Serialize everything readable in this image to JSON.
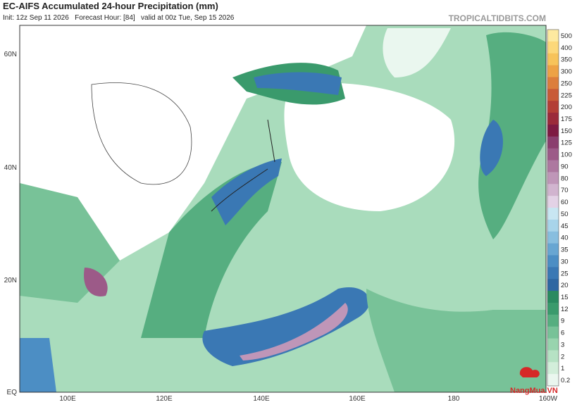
{
  "header": {
    "title": "EC-AIFS Accumulated 24-hour Precipitation (mm)",
    "subtitle": "Init: 12z Sep 11 2026   Forecast Hour: [84]   valid at 00z Tue, Sep 15 2026",
    "site": "TROPICALTIDBITS.COM"
  },
  "map": {
    "lat_labels": [
      "60N",
      "40N",
      "20N",
      "EQ"
    ],
    "lon_labels": [
      "100E",
      "120E",
      "140E",
      "160E",
      "180",
      "160W"
    ]
  },
  "colorbar": {
    "labels": [
      "500",
      "400",
      "350",
      "300",
      "250",
      "225",
      "200",
      "175",
      "150",
      "125",
      "100",
      "90",
      "80",
      "70",
      "60",
      "50",
      "45",
      "40",
      "35",
      "30",
      "25",
      "20",
      "15",
      "12",
      "9",
      "6",
      "3",
      "2",
      "1",
      "0.2"
    ],
    "colors": [
      "#fde9a0",
      "#fcd87a",
      "#f7c35a",
      "#eda245",
      "#dc7e3c",
      "#c85a37",
      "#b33e36",
      "#9b2a3a",
      "#7e1a42",
      "#8a3e6e",
      "#9c5a88",
      "#ad78a0",
      "#bf96b8",
      "#d1b4cf",
      "#e3d2e6",
      "#c8e6f2",
      "#a8d4ea",
      "#88bedf",
      "#68a6d2",
      "#4c8ec4",
      "#3a78b4",
      "#2e66a2",
      "#2a8a60",
      "#3a9a6c",
      "#56ae80",
      "#78c298",
      "#98d4ae",
      "#b6e2c4",
      "#d2eeda",
      "#eaf7ef"
    ]
  },
  "watermark": "NangMua.VN"
}
